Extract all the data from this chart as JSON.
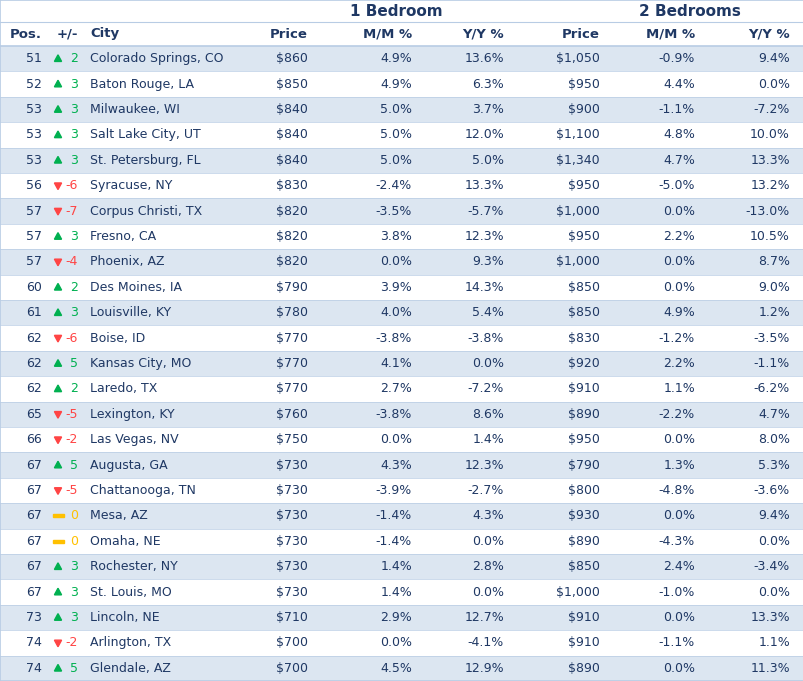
{
  "group1_label": "1 Bedroom",
  "group2_label": "2 Bedrooms",
  "rows": [
    {
      "pos": "51",
      "arrow": "up",
      "chg": "2",
      "city": "Colorado Springs, CO",
      "p1": "$860",
      "mm1": "4.9%",
      "yy1": "13.6%",
      "p2": "$1,050",
      "mm2": "-0.9%",
      "yy2": "9.4%"
    },
    {
      "pos": "52",
      "arrow": "up",
      "chg": "3",
      "city": "Baton Rouge, LA",
      "p1": "$850",
      "mm1": "4.9%",
      "yy1": "6.3%",
      "p2": "$950",
      "mm2": "4.4%",
      "yy2": "0.0%"
    },
    {
      "pos": "53",
      "arrow": "up",
      "chg": "3",
      "city": "Milwaukee, WI",
      "p1": "$840",
      "mm1": "5.0%",
      "yy1": "3.7%",
      "p2": "$900",
      "mm2": "-1.1%",
      "yy2": "-7.2%"
    },
    {
      "pos": "53",
      "arrow": "up",
      "chg": "3",
      "city": "Salt Lake City, UT",
      "p1": "$840",
      "mm1": "5.0%",
      "yy1": "12.0%",
      "p2": "$1,100",
      "mm2": "4.8%",
      "yy2": "10.0%"
    },
    {
      "pos": "53",
      "arrow": "up",
      "chg": "3",
      "city": "St. Petersburg, FL",
      "p1": "$840",
      "mm1": "5.0%",
      "yy1": "5.0%",
      "p2": "$1,340",
      "mm2": "4.7%",
      "yy2": "13.3%"
    },
    {
      "pos": "56",
      "arrow": "down",
      "chg": "-6",
      "city": "Syracuse, NY",
      "p1": "$830",
      "mm1": "-2.4%",
      "yy1": "13.3%",
      "p2": "$950",
      "mm2": "-5.0%",
      "yy2": "13.2%"
    },
    {
      "pos": "57",
      "arrow": "down",
      "chg": "-7",
      "city": "Corpus Christi, TX",
      "p1": "$820",
      "mm1": "-3.5%",
      "yy1": "-5.7%",
      "p2": "$1,000",
      "mm2": "0.0%",
      "yy2": "-13.0%"
    },
    {
      "pos": "57",
      "arrow": "up",
      "chg": "3",
      "city": "Fresno, CA",
      "p1": "$820",
      "mm1": "3.8%",
      "yy1": "12.3%",
      "p2": "$950",
      "mm2": "2.2%",
      "yy2": "10.5%"
    },
    {
      "pos": "57",
      "arrow": "down",
      "chg": "-4",
      "city": "Phoenix, AZ",
      "p1": "$820",
      "mm1": "0.0%",
      "yy1": "9.3%",
      "p2": "$1,000",
      "mm2": "0.0%",
      "yy2": "8.7%"
    },
    {
      "pos": "60",
      "arrow": "up",
      "chg": "2",
      "city": "Des Moines, IA",
      "p1": "$790",
      "mm1": "3.9%",
      "yy1": "14.3%",
      "p2": "$850",
      "mm2": "0.0%",
      "yy2": "9.0%"
    },
    {
      "pos": "61",
      "arrow": "up",
      "chg": "3",
      "city": "Louisville, KY",
      "p1": "$780",
      "mm1": "4.0%",
      "yy1": "5.4%",
      "p2": "$850",
      "mm2": "4.9%",
      "yy2": "1.2%"
    },
    {
      "pos": "62",
      "arrow": "down",
      "chg": "-6",
      "city": "Boise, ID",
      "p1": "$770",
      "mm1": "-3.8%",
      "yy1": "-3.8%",
      "p2": "$830",
      "mm2": "-1.2%",
      "yy2": "-3.5%"
    },
    {
      "pos": "62",
      "arrow": "up",
      "chg": "5",
      "city": "Kansas City, MO",
      "p1": "$770",
      "mm1": "4.1%",
      "yy1": "0.0%",
      "p2": "$920",
      "mm2": "2.2%",
      "yy2": "-1.1%"
    },
    {
      "pos": "62",
      "arrow": "up",
      "chg": "2",
      "city": "Laredo, TX",
      "p1": "$770",
      "mm1": "2.7%",
      "yy1": "-7.2%",
      "p2": "$910",
      "mm2": "1.1%",
      "yy2": "-6.2%"
    },
    {
      "pos": "65",
      "arrow": "down",
      "chg": "-5",
      "city": "Lexington, KY",
      "p1": "$760",
      "mm1": "-3.8%",
      "yy1": "8.6%",
      "p2": "$890",
      "mm2": "-2.2%",
      "yy2": "4.7%"
    },
    {
      "pos": "66",
      "arrow": "down",
      "chg": "-2",
      "city": "Las Vegas, NV",
      "p1": "$750",
      "mm1": "0.0%",
      "yy1": "1.4%",
      "p2": "$950",
      "mm2": "0.0%",
      "yy2": "8.0%"
    },
    {
      "pos": "67",
      "arrow": "up",
      "chg": "5",
      "city": "Augusta, GA",
      "p1": "$730",
      "mm1": "4.3%",
      "yy1": "12.3%",
      "p2": "$790",
      "mm2": "1.3%",
      "yy2": "5.3%"
    },
    {
      "pos": "67",
      "arrow": "down",
      "chg": "-5",
      "city": "Chattanooga, TN",
      "p1": "$730",
      "mm1": "-3.9%",
      "yy1": "-2.7%",
      "p2": "$800",
      "mm2": "-4.8%",
      "yy2": "-3.6%"
    },
    {
      "pos": "67",
      "arrow": "flat",
      "chg": "0",
      "city": "Mesa, AZ",
      "p1": "$730",
      "mm1": "-1.4%",
      "yy1": "4.3%",
      "p2": "$930",
      "mm2": "0.0%",
      "yy2": "9.4%"
    },
    {
      "pos": "67",
      "arrow": "flat",
      "chg": "0",
      "city": "Omaha, NE",
      "p1": "$730",
      "mm1": "-1.4%",
      "yy1": "0.0%",
      "p2": "$890",
      "mm2": "-4.3%",
      "yy2": "0.0%"
    },
    {
      "pos": "67",
      "arrow": "up",
      "chg": "3",
      "city": "Rochester, NY",
      "p1": "$730",
      "mm1": "1.4%",
      "yy1": "2.8%",
      "p2": "$850",
      "mm2": "2.4%",
      "yy2": "-3.4%"
    },
    {
      "pos": "67",
      "arrow": "up",
      "chg": "3",
      "city": "St. Louis, MO",
      "p1": "$730",
      "mm1": "1.4%",
      "yy1": "0.0%",
      "p2": "$1,000",
      "mm2": "-1.0%",
      "yy2": "0.0%"
    },
    {
      "pos": "73",
      "arrow": "up",
      "chg": "3",
      "city": "Lincoln, NE",
      "p1": "$710",
      "mm1": "2.9%",
      "yy1": "12.7%",
      "p2": "$910",
      "mm2": "0.0%",
      "yy2": "13.3%"
    },
    {
      "pos": "74",
      "arrow": "down",
      "chg": "-2",
      "city": "Arlington, TX",
      "p1": "$700",
      "mm1": "0.0%",
      "yy1": "-4.1%",
      "p2": "$910",
      "mm2": "-1.1%",
      "yy2": "1.1%"
    },
    {
      "pos": "74",
      "arrow": "up",
      "chg": "5",
      "city": "Glendale, AZ",
      "p1": "$700",
      "mm1": "4.5%",
      "yy1": "12.9%",
      "p2": "$890",
      "mm2": "0.0%",
      "yy2": "11.3%"
    }
  ],
  "row_bg_odd": "#dce6f1",
  "row_bg_even": "#ffffff",
  "text_color": "#1f3864",
  "up_color": "#00b050",
  "down_color": "#ff4444",
  "flat_color": "#ffc000",
  "fig_width": 8.04,
  "fig_height": 6.81,
  "dpi": 100
}
